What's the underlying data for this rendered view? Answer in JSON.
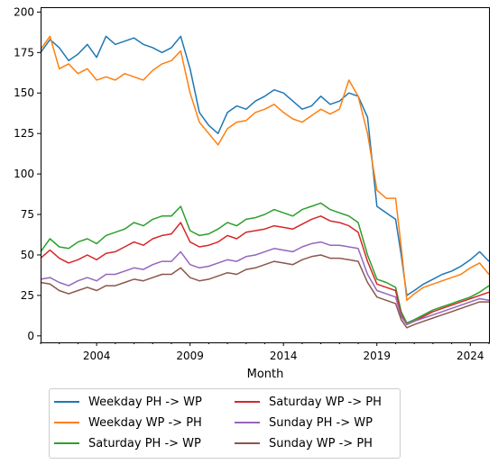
{
  "chart_data": {
    "type": "line",
    "title": "",
    "xlabel": "Month",
    "ylabel": "",
    "xlim": [
      2001.0,
      2025.0
    ],
    "ylim": [
      -4,
      203
    ],
    "x_ticks": [
      2004,
      2009,
      2014,
      2019,
      2024
    ],
    "y_ticks": [
      0,
      25,
      50,
      75,
      100,
      125,
      150,
      175,
      200
    ],
    "grid": false,
    "legend_position": "below",
    "series": [
      {
        "name": "Weekday PH -> WP",
        "color": "#1f77b4",
        "points": [
          [
            2001.0,
            175
          ],
          [
            2001.5,
            183
          ],
          [
            2002.0,
            178
          ],
          [
            2002.5,
            170
          ],
          [
            2003.0,
            174
          ],
          [
            2003.5,
            180
          ],
          [
            2004.0,
            172
          ],
          [
            2004.5,
            185
          ],
          [
            2005.0,
            180
          ],
          [
            2005.5,
            182
          ],
          [
            2006.0,
            184
          ],
          [
            2006.5,
            180
          ],
          [
            2007.0,
            178
          ],
          [
            2007.5,
            175
          ],
          [
            2008.0,
            178
          ],
          [
            2008.5,
            185
          ],
          [
            2009.0,
            165
          ],
          [
            2009.5,
            138
          ],
          [
            2010.0,
            130
          ],
          [
            2010.5,
            125
          ],
          [
            2011.0,
            138
          ],
          [
            2011.5,
            142
          ],
          [
            2012.0,
            140
          ],
          [
            2012.5,
            145
          ],
          [
            2013.0,
            148
          ],
          [
            2013.5,
            152
          ],
          [
            2014.0,
            150
          ],
          [
            2014.5,
            145
          ],
          [
            2015.0,
            140
          ],
          [
            2015.5,
            142
          ],
          [
            2016.0,
            148
          ],
          [
            2016.5,
            143
          ],
          [
            2017.0,
            145
          ],
          [
            2017.5,
            150
          ],
          [
            2018.0,
            148
          ],
          [
            2018.5,
            135
          ],
          [
            2019.0,
            80
          ],
          [
            2019.5,
            76
          ],
          [
            2020.0,
            72
          ],
          [
            2020.3,
            50
          ],
          [
            2020.6,
            25
          ],
          [
            2021.0,
            28
          ],
          [
            2021.5,
            32
          ],
          [
            2022.0,
            35
          ],
          [
            2022.5,
            38
          ],
          [
            2023.0,
            40
          ],
          [
            2023.5,
            43
          ],
          [
            2024.0,
            47
          ],
          [
            2024.5,
            52
          ],
          [
            2025.0,
            46
          ]
        ]
      },
      {
        "name": "Weekday WP -> PH",
        "color": "#ff7f0e",
        "points": [
          [
            2001.0,
            177
          ],
          [
            2001.5,
            185
          ],
          [
            2002.0,
            165
          ],
          [
            2002.5,
            168
          ],
          [
            2003.0,
            162
          ],
          [
            2003.5,
            165
          ],
          [
            2004.0,
            158
          ],
          [
            2004.5,
            160
          ],
          [
            2005.0,
            158
          ],
          [
            2005.5,
            162
          ],
          [
            2006.0,
            160
          ],
          [
            2006.5,
            158
          ],
          [
            2007.0,
            164
          ],
          [
            2007.5,
            168
          ],
          [
            2008.0,
            170
          ],
          [
            2008.5,
            176
          ],
          [
            2009.0,
            150
          ],
          [
            2009.5,
            132
          ],
          [
            2010.0,
            125
          ],
          [
            2010.5,
            118
          ],
          [
            2011.0,
            128
          ],
          [
            2011.5,
            132
          ],
          [
            2012.0,
            133
          ],
          [
            2012.5,
            138
          ],
          [
            2013.0,
            140
          ],
          [
            2013.5,
            143
          ],
          [
            2014.0,
            138
          ],
          [
            2014.5,
            134
          ],
          [
            2015.0,
            132
          ],
          [
            2015.5,
            136
          ],
          [
            2016.0,
            140
          ],
          [
            2016.5,
            137
          ],
          [
            2017.0,
            140
          ],
          [
            2017.5,
            158
          ],
          [
            2018.0,
            148
          ],
          [
            2018.5,
            125
          ],
          [
            2019.0,
            90
          ],
          [
            2019.5,
            85
          ],
          [
            2020.0,
            85
          ],
          [
            2020.3,
            55
          ],
          [
            2020.6,
            22
          ],
          [
            2021.0,
            26
          ],
          [
            2021.5,
            30
          ],
          [
            2022.0,
            32
          ],
          [
            2022.5,
            34
          ],
          [
            2023.0,
            36
          ],
          [
            2023.5,
            38
          ],
          [
            2024.0,
            42
          ],
          [
            2024.5,
            45
          ],
          [
            2025.0,
            38
          ]
        ]
      },
      {
        "name": "Saturday PH -> WP",
        "color": "#2ca02c",
        "points": [
          [
            2001.0,
            52
          ],
          [
            2001.5,
            60
          ],
          [
            2002.0,
            55
          ],
          [
            2002.5,
            54
          ],
          [
            2003.0,
            58
          ],
          [
            2003.5,
            60
          ],
          [
            2004.0,
            57
          ],
          [
            2004.5,
            62
          ],
          [
            2005.0,
            64
          ],
          [
            2005.5,
            66
          ],
          [
            2006.0,
            70
          ],
          [
            2006.5,
            68
          ],
          [
            2007.0,
            72
          ],
          [
            2007.5,
            74
          ],
          [
            2008.0,
            74
          ],
          [
            2008.5,
            80
          ],
          [
            2009.0,
            65
          ],
          [
            2009.5,
            62
          ],
          [
            2010.0,
            63
          ],
          [
            2010.5,
            66
          ],
          [
            2011.0,
            70
          ],
          [
            2011.5,
            68
          ],
          [
            2012.0,
            72
          ],
          [
            2012.5,
            73
          ],
          [
            2013.0,
            75
          ],
          [
            2013.5,
            78
          ],
          [
            2014.0,
            76
          ],
          [
            2014.5,
            74
          ],
          [
            2015.0,
            78
          ],
          [
            2015.5,
            80
          ],
          [
            2016.0,
            82
          ],
          [
            2016.5,
            78
          ],
          [
            2017.0,
            76
          ],
          [
            2017.5,
            74
          ],
          [
            2018.0,
            70
          ],
          [
            2018.5,
            50
          ],
          [
            2019.0,
            35
          ],
          [
            2019.5,
            33
          ],
          [
            2020.0,
            30
          ],
          [
            2020.3,
            15
          ],
          [
            2020.6,
            8
          ],
          [
            2021.0,
            10
          ],
          [
            2021.5,
            13
          ],
          [
            2022.0,
            16
          ],
          [
            2022.5,
            18
          ],
          [
            2023.0,
            20
          ],
          [
            2023.5,
            22
          ],
          [
            2024.0,
            24
          ],
          [
            2024.5,
            27
          ],
          [
            2025.0,
            31
          ]
        ]
      },
      {
        "name": "Saturday WP -> PH",
        "color": "#d62728",
        "points": [
          [
            2001.0,
            48
          ],
          [
            2001.5,
            53
          ],
          [
            2002.0,
            48
          ],
          [
            2002.5,
            45
          ],
          [
            2003.0,
            47
          ],
          [
            2003.5,
            50
          ],
          [
            2004.0,
            47
          ],
          [
            2004.5,
            51
          ],
          [
            2005.0,
            52
          ],
          [
            2005.5,
            55
          ],
          [
            2006.0,
            58
          ],
          [
            2006.5,
            56
          ],
          [
            2007.0,
            60
          ],
          [
            2007.5,
            62
          ],
          [
            2008.0,
            63
          ],
          [
            2008.5,
            70
          ],
          [
            2009.0,
            58
          ],
          [
            2009.5,
            55
          ],
          [
            2010.0,
            56
          ],
          [
            2010.5,
            58
          ],
          [
            2011.0,
            62
          ],
          [
            2011.5,
            60
          ],
          [
            2012.0,
            64
          ],
          [
            2012.5,
            65
          ],
          [
            2013.0,
            66
          ],
          [
            2013.5,
            68
          ],
          [
            2014.0,
            67
          ],
          [
            2014.5,
            66
          ],
          [
            2015.0,
            69
          ],
          [
            2015.5,
            72
          ],
          [
            2016.0,
            74
          ],
          [
            2016.5,
            71
          ],
          [
            2017.0,
            70
          ],
          [
            2017.5,
            68
          ],
          [
            2018.0,
            64
          ],
          [
            2018.5,
            46
          ],
          [
            2019.0,
            32
          ],
          [
            2019.5,
            30
          ],
          [
            2020.0,
            28
          ],
          [
            2020.3,
            13
          ],
          [
            2020.6,
            7
          ],
          [
            2021.0,
            9
          ],
          [
            2021.5,
            12
          ],
          [
            2022.0,
            15
          ],
          [
            2022.5,
            17
          ],
          [
            2023.0,
            19
          ],
          [
            2023.5,
            21
          ],
          [
            2024.0,
            23
          ],
          [
            2024.5,
            25
          ],
          [
            2025.0,
            27
          ]
        ]
      },
      {
        "name": "Sunday PH -> WP",
        "color": "#9467bd",
        "points": [
          [
            2001.0,
            35
          ],
          [
            2001.5,
            36
          ],
          [
            2002.0,
            33
          ],
          [
            2002.5,
            31
          ],
          [
            2003.0,
            34
          ],
          [
            2003.5,
            36
          ],
          [
            2004.0,
            34
          ],
          [
            2004.5,
            38
          ],
          [
            2005.0,
            38
          ],
          [
            2005.5,
            40
          ],
          [
            2006.0,
            42
          ],
          [
            2006.5,
            41
          ],
          [
            2007.0,
            44
          ],
          [
            2007.5,
            46
          ],
          [
            2008.0,
            46
          ],
          [
            2008.5,
            52
          ],
          [
            2009.0,
            44
          ],
          [
            2009.5,
            42
          ],
          [
            2010.0,
            43
          ],
          [
            2010.5,
            45
          ],
          [
            2011.0,
            47
          ],
          [
            2011.5,
            46
          ],
          [
            2012.0,
            49
          ],
          [
            2012.5,
            50
          ],
          [
            2013.0,
            52
          ],
          [
            2013.5,
            54
          ],
          [
            2014.0,
            53
          ],
          [
            2014.5,
            52
          ],
          [
            2015.0,
            55
          ],
          [
            2015.5,
            57
          ],
          [
            2016.0,
            58
          ],
          [
            2016.5,
            56
          ],
          [
            2017.0,
            56
          ],
          [
            2017.5,
            55
          ],
          [
            2018.0,
            54
          ],
          [
            2018.5,
            38
          ],
          [
            2019.0,
            28
          ],
          [
            2019.5,
            26
          ],
          [
            2020.0,
            24
          ],
          [
            2020.3,
            12
          ],
          [
            2020.6,
            7
          ],
          [
            2021.0,
            9
          ],
          [
            2021.5,
            11
          ],
          [
            2022.0,
            13
          ],
          [
            2022.5,
            15
          ],
          [
            2023.0,
            17
          ],
          [
            2023.5,
            19
          ],
          [
            2024.0,
            21
          ],
          [
            2024.5,
            23
          ],
          [
            2025.0,
            22
          ]
        ]
      },
      {
        "name": "Sunday WP -> PH",
        "color": "#8c564b",
        "points": [
          [
            2001.0,
            33
          ],
          [
            2001.5,
            32
          ],
          [
            2002.0,
            28
          ],
          [
            2002.5,
            26
          ],
          [
            2003.0,
            28
          ],
          [
            2003.5,
            30
          ],
          [
            2004.0,
            28
          ],
          [
            2004.5,
            31
          ],
          [
            2005.0,
            31
          ],
          [
            2005.5,
            33
          ],
          [
            2006.0,
            35
          ],
          [
            2006.5,
            34
          ],
          [
            2007.0,
            36
          ],
          [
            2007.5,
            38
          ],
          [
            2008.0,
            38
          ],
          [
            2008.5,
            42
          ],
          [
            2009.0,
            36
          ],
          [
            2009.5,
            34
          ],
          [
            2010.0,
            35
          ],
          [
            2010.5,
            37
          ],
          [
            2011.0,
            39
          ],
          [
            2011.5,
            38
          ],
          [
            2012.0,
            41
          ],
          [
            2012.5,
            42
          ],
          [
            2013.0,
            44
          ],
          [
            2013.5,
            46
          ],
          [
            2014.0,
            45
          ],
          [
            2014.5,
            44
          ],
          [
            2015.0,
            47
          ],
          [
            2015.5,
            49
          ],
          [
            2016.0,
            50
          ],
          [
            2016.5,
            48
          ],
          [
            2017.0,
            48
          ],
          [
            2017.5,
            47
          ],
          [
            2018.0,
            46
          ],
          [
            2018.5,
            33
          ],
          [
            2019.0,
            24
          ],
          [
            2019.5,
            22
          ],
          [
            2020.0,
            20
          ],
          [
            2020.3,
            10
          ],
          [
            2020.6,
            5
          ],
          [
            2021.0,
            7
          ],
          [
            2021.5,
            9
          ],
          [
            2022.0,
            11
          ],
          [
            2022.5,
            13
          ],
          [
            2023.0,
            15
          ],
          [
            2023.5,
            17
          ],
          [
            2024.0,
            19
          ],
          [
            2024.5,
            21
          ],
          [
            2025.0,
            21
          ]
        ]
      }
    ]
  }
}
